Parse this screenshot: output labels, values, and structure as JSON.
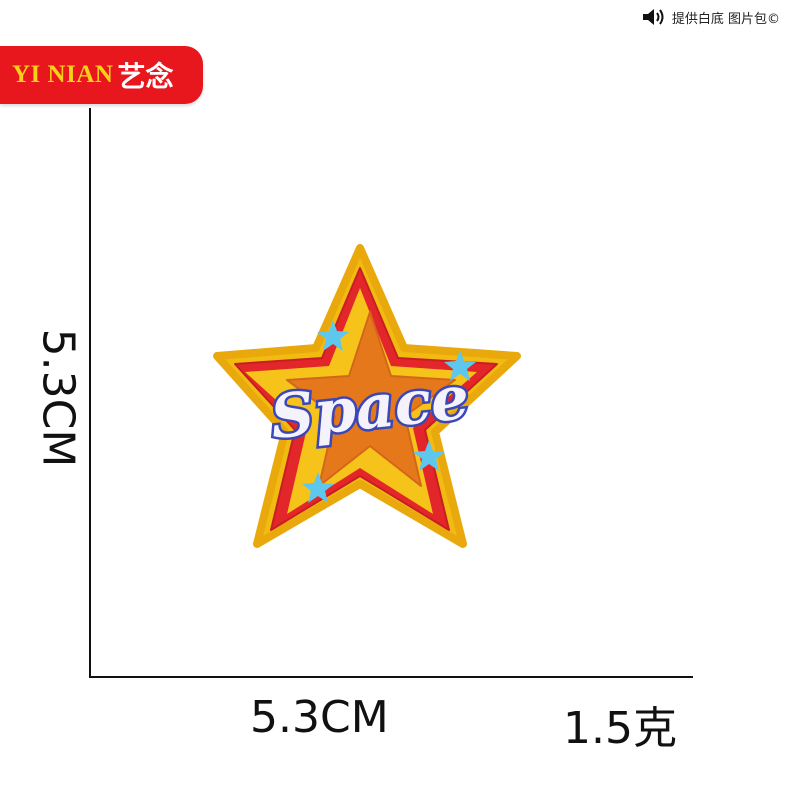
{
  "watermark": {
    "text": "提供白底 图片包©",
    "icon": "speaker-icon"
  },
  "brand": {
    "latin": "YI NIAN",
    "cjk": "艺念",
    "bg_color": "#e8161d",
    "latin_color": "#f7d117"
  },
  "dimensions": {
    "height": "5.3CM",
    "width": "5.3CM",
    "weight": "1.5克"
  },
  "patch": {
    "text": "Space",
    "colors": {
      "outer_yellow": "#f2bb12",
      "red": "#e3262a",
      "orange_star": "#e6781c",
      "text_fill": "#f4f2fb",
      "text_outline": "#3b47b8",
      "small_stars": "#5ec7ee"
    }
  }
}
